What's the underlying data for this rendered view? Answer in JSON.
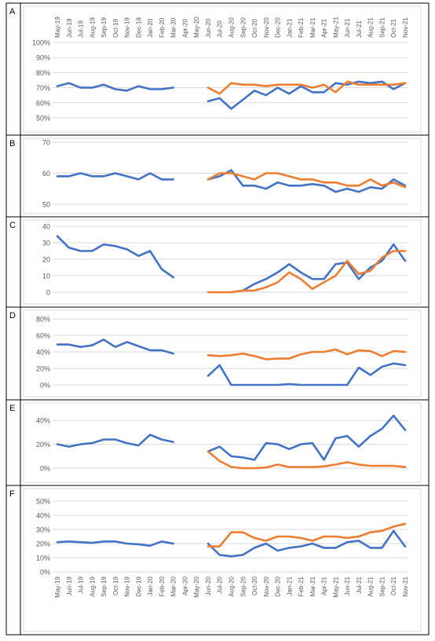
{
  "colors": {
    "series1": "#4472C4",
    "series2": "#ED7D31",
    "grid": "#D9D9D9",
    "border": "#000000",
    "text": "#595959"
  },
  "chart_data": [
    {
      "type": "line",
      "panel": "A",
      "ylim": [
        50,
        100
      ],
      "ytick_format": "percent",
      "yticks": [
        50,
        60,
        70,
        80,
        90,
        100
      ],
      "x": [
        "May-19",
        "Jun-19",
        "Jul-19",
        "Aug-19",
        "Sep-19",
        "Oct-19",
        "Nov-19",
        "Dec-19",
        "Jan-20",
        "Feb-20",
        "Mar-20",
        "Apr-20",
        "May-20",
        "Jun-20",
        "Jul-20",
        "Aug-20",
        "Sep-20",
        "Oct-20",
        "Nov-20",
        "Dec-20",
        "Jan-21",
        "Feb-21",
        "Mar-21",
        "Apr-21",
        "May-21",
        "Jun-21",
        "Jul-21",
        "Aug-21",
        "Sep-21",
        "Oct-21",
        "Nov-21"
      ],
      "series": [
        {
          "values": [
            71,
            73,
            70,
            70,
            72,
            69,
            68,
            71,
            69,
            69,
            70,
            null,
            null,
            61,
            63,
            56,
            62,
            68,
            65,
            70,
            66,
            71,
            67,
            67,
            73,
            72,
            74,
            73,
            74,
            69,
            73
          ],
          "color": "#4472C4"
        },
        {
          "values": [
            null,
            null,
            null,
            null,
            null,
            null,
            null,
            null,
            null,
            null,
            null,
            null,
            null,
            70,
            66,
            73,
            72,
            72,
            71,
            72,
            72,
            72,
            70,
            72,
            67,
            74,
            72,
            72,
            72,
            72,
            73
          ],
          "color": "#ED7D31"
        }
      ],
      "grid": true
    },
    {
      "type": "line",
      "panel": "B",
      "ylim": [
        50,
        70
      ],
      "ytick_format": "number",
      "yticks": [
        50,
        60,
        70
      ],
      "x": [
        "May-19",
        "Jun-19",
        "Jul-19",
        "Aug-19",
        "Sep-19",
        "Oct-19",
        "Nov-19",
        "Dec-19",
        "Jan-20",
        "Feb-20",
        "Mar-20",
        "Apr-20",
        "May-20",
        "Jun-20",
        "Jul-20",
        "Aug-20",
        "Sep-20",
        "Oct-20",
        "Nov-20",
        "Dec-20",
        "Jan-21",
        "Feb-21",
        "Mar-21",
        "Apr-21",
        "May-21",
        "Jun-21",
        "Jul-21",
        "Aug-21",
        "Sep-21",
        "Oct-21",
        "Nov-21"
      ],
      "series": [
        {
          "values": [
            59,
            59,
            60,
            59,
            59,
            60,
            59,
            58,
            60,
            58,
            58,
            null,
            null,
            58,
            59,
            61,
            56,
            56,
            55,
            57,
            56,
            56,
            56.5,
            56,
            54,
            55,
            54,
            55.5,
            55,
            58,
            56
          ],
          "color": "#4472C4"
        },
        {
          "values": [
            null,
            null,
            null,
            null,
            null,
            null,
            null,
            null,
            null,
            null,
            null,
            null,
            null,
            58,
            60,
            60,
            59,
            58,
            60,
            60,
            59,
            58,
            58,
            57,
            57,
            56,
            56,
            58,
            56,
            57,
            55.5
          ],
          "color": "#ED7D31"
        }
      ],
      "grid": true
    },
    {
      "type": "line",
      "panel": "C",
      "ylim": [
        0,
        40
      ],
      "ytick_format": "number",
      "yticks": [
        0,
        10,
        20,
        30,
        40
      ],
      "x": [
        "May-19",
        "Jun-19",
        "Jul-19",
        "Aug-19",
        "Sep-19",
        "Oct-19",
        "Nov-19",
        "Dec-19",
        "Jan-20",
        "Feb-20",
        "Mar-20",
        "Apr-20",
        "May-20",
        "Jun-20",
        "Jul-20",
        "Aug-20",
        "Sep-20",
        "Oct-20",
        "Nov-20",
        "Dec-20",
        "Jan-21",
        "Feb-21",
        "Mar-21",
        "Apr-21",
        "May-21",
        "Jun-21",
        "Jul-21",
        "Aug-21",
        "Sep-21",
        "Oct-21",
        "Nov-21"
      ],
      "series": [
        {
          "values": [
            34,
            27,
            25,
            25,
            29,
            28,
            26,
            22,
            25,
            14,
            9,
            null,
            null,
            null,
            null,
            0,
            1,
            5,
            8,
            12,
            17,
            12,
            8,
            8,
            17,
            18,
            8,
            15,
            19,
            29,
            19
          ],
          "color": "#4472C4"
        },
        {
          "values": [
            null,
            null,
            null,
            null,
            null,
            null,
            null,
            null,
            null,
            null,
            null,
            null,
            null,
            0,
            0,
            0,
            1,
            1,
            3,
            6,
            12,
            8,
            2,
            6,
            10,
            19,
            11,
            13,
            21,
            25,
            25
          ],
          "color": "#ED7D31"
        }
      ],
      "grid": true
    },
    {
      "type": "line",
      "panel": "D",
      "ylim": [
        0,
        80
      ],
      "ytick_format": "percent",
      "yticks": [
        0,
        20,
        40,
        60,
        80
      ],
      "x": [
        "May-19",
        "Jun-19",
        "Jul-19",
        "Aug-19",
        "Sep-19",
        "Oct-19",
        "Nov-19",
        "Dec-19",
        "Jan-20",
        "Feb-20",
        "Mar-20",
        "Apr-20",
        "May-20",
        "Jun-20",
        "Jul-20",
        "Aug-20",
        "Sep-20",
        "Oct-20",
        "Nov-20",
        "Dec-20",
        "Jan-21",
        "Feb-21",
        "Mar-21",
        "Apr-21",
        "May-21",
        "Jun-21",
        "Jul-21",
        "Aug-21",
        "Sep-21",
        "Oct-21",
        "Nov-21"
      ],
      "series": [
        {
          "values": [
            49,
            49,
            46,
            48,
            55,
            46,
            52,
            47,
            42,
            42,
            38,
            null,
            null,
            11,
            24,
            0,
            0,
            0,
            0,
            0,
            1,
            0,
            0,
            0,
            0,
            0,
            21,
            12,
            22,
            26,
            24
          ],
          "color": "#4472C4"
        },
        {
          "values": [
            null,
            null,
            null,
            null,
            null,
            null,
            null,
            null,
            null,
            null,
            null,
            null,
            null,
            36,
            35,
            36,
            38,
            35,
            31,
            32,
            32,
            37,
            40,
            40,
            43,
            37,
            42,
            41,
            35,
            41,
            40
          ],
          "color": "#ED7D31"
        }
      ],
      "grid": true
    },
    {
      "type": "line",
      "panel": "E",
      "ylim": [
        0,
        50
      ],
      "ytick_format": "percent",
      "yticks": [
        0,
        20,
        40
      ],
      "x": [
        "May-19",
        "Jun-19",
        "Jul-19",
        "Aug-19",
        "Sep-19",
        "Oct-19",
        "Nov-19",
        "Dec-19",
        "Jan-20",
        "Feb-20",
        "Mar-20",
        "Apr-20",
        "May-20",
        "Jun-20",
        "Jul-20",
        "Aug-20",
        "Sep-20",
        "Oct-20",
        "Nov-20",
        "Dec-20",
        "Jan-21",
        "Feb-21",
        "Mar-21",
        "Apr-21",
        "May-21",
        "Jun-21",
        "Jul-21",
        "Aug-21",
        "Sep-21",
        "Oct-21",
        "Nov-21"
      ],
      "series": [
        {
          "values": [
            20,
            18,
            20,
            21,
            24,
            24,
            21,
            19,
            28,
            24,
            22,
            null,
            null,
            14,
            18,
            10,
            9,
            7,
            21,
            20,
            16,
            20,
            21,
            7,
            25,
            27,
            18,
            27,
            33,
            44,
            32
          ],
          "color": "#4472C4"
        },
        {
          "values": [
            null,
            null,
            null,
            null,
            null,
            null,
            null,
            null,
            null,
            null,
            null,
            null,
            null,
            14,
            6,
            1,
            0,
            0,
            0.5,
            3,
            1,
            1,
            1,
            1.5,
            3,
            5,
            3,
            2,
            2,
            2,
            1
          ],
          "color": "#ED7D31"
        }
      ],
      "grid": true
    },
    {
      "type": "line",
      "panel": "F",
      "ylim": [
        0,
        50
      ],
      "ytick_format": "percent",
      "yticks": [
        0,
        10,
        20,
        30,
        40,
        50
      ],
      "x": [
        "May-19",
        "Jun-19",
        "Jul-19",
        "Aug-19",
        "Sep-19",
        "Oct-19",
        "Nov-19",
        "Dec-19",
        "Jan-20",
        "Feb-20",
        "Mar-20",
        "Apr-20",
        "May-20",
        "Jun-20",
        "Jul-20",
        "Aug-20",
        "Sep-20",
        "Oct-20",
        "Nov-20",
        "Dec-20",
        "Jan-21",
        "Feb-21",
        "Mar-21",
        "Apr-21",
        "May-21",
        "Jun-21",
        "Jul-21",
        "Aug-21",
        "Sep-21",
        "Oct-21",
        "Nov-21"
      ],
      "series": [
        {
          "values": [
            21,
            21.5,
            21,
            20.5,
            21.5,
            21.5,
            20,
            19.5,
            18.5,
            21.5,
            20,
            null,
            null,
            20,
            12,
            11,
            12,
            17,
            20,
            15,
            17,
            18,
            20,
            17,
            17,
            21,
            22,
            17,
            17,
            29,
            18
          ],
          "color": "#4472C4"
        },
        {
          "values": [
            null,
            null,
            null,
            null,
            null,
            null,
            null,
            null,
            null,
            null,
            null,
            null,
            null,
            18,
            18,
            28,
            28,
            24,
            22,
            25,
            25,
            24,
            22,
            25,
            25,
            24,
            25,
            28,
            29,
            32,
            34
          ],
          "color": "#ED7D31"
        }
      ],
      "grid": true
    }
  ]
}
